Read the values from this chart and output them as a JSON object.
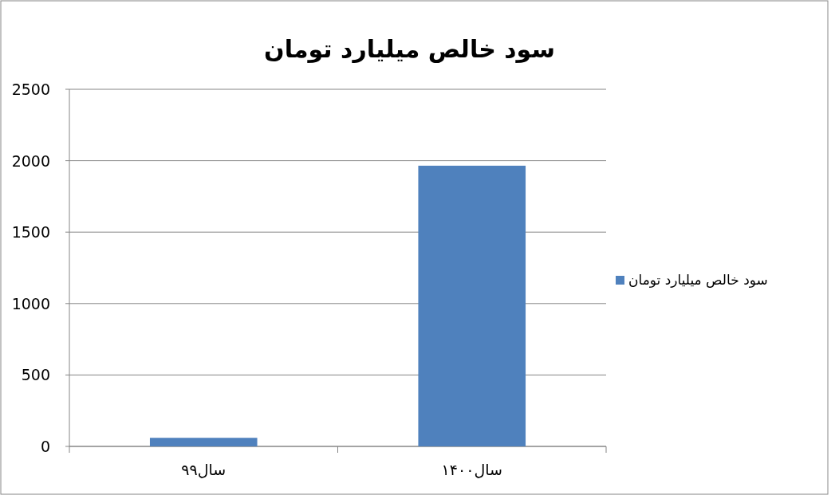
{
  "chart_data": {
    "type": "bar",
    "title": "سود خالص میلیارد تومان",
    "categories": [
      "سال۹۹",
      "سال۱۴۰۰"
    ],
    "series": [
      {
        "name": "سود خالص میلیارد تومان",
        "color": "#4f81bd",
        "values": [
          60,
          1965
        ]
      }
    ],
    "ylim": [
      0,
      2500
    ],
    "yticks": [
      0,
      500,
      1000,
      1500,
      2000,
      2500
    ],
    "grid": "y",
    "legend": "right"
  }
}
